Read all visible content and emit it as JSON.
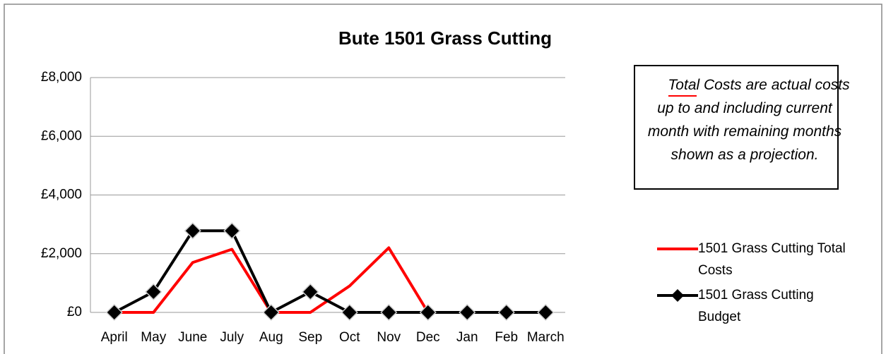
{
  "chart_data": {
    "type": "line",
    "title": "Bute 1501 Grass Cutting",
    "annotation": "Total Costs are actual costs up to and including current month with remaining months shown as a projection.",
    "categories": [
      "April",
      "May",
      "June",
      "July",
      "Aug",
      "Sep",
      "Oct",
      "Nov",
      "Dec",
      "Jan",
      "Feb",
      "March"
    ],
    "series": [
      {
        "name": "1501 Grass Cutting Total Costs",
        "color": "#ff0000",
        "marker": false,
        "values": [
          0,
          0,
          1700,
          2150,
          0,
          0,
          900,
          2200,
          0,
          0,
          0,
          0
        ]
      },
      {
        "name": "1501 Grass Cutting Budget",
        "color": "#000000",
        "marker": true,
        "values": [
          0,
          700,
          2780,
          2780,
          0,
          700,
          0,
          0,
          0,
          0,
          0,
          0
        ]
      }
    ],
    "ylim": [
      0,
      8000
    ],
    "yticks": [
      {
        "value": 0,
        "label": "£0"
      },
      {
        "value": 2000,
        "label": "£2,000"
      },
      {
        "value": 4000,
        "label": "£4,000"
      },
      {
        "value": 6000,
        "label": "£6,000"
      },
      {
        "value": 8000,
        "label": "£8,000"
      }
    ],
    "grid": true,
    "legend": "right"
  }
}
